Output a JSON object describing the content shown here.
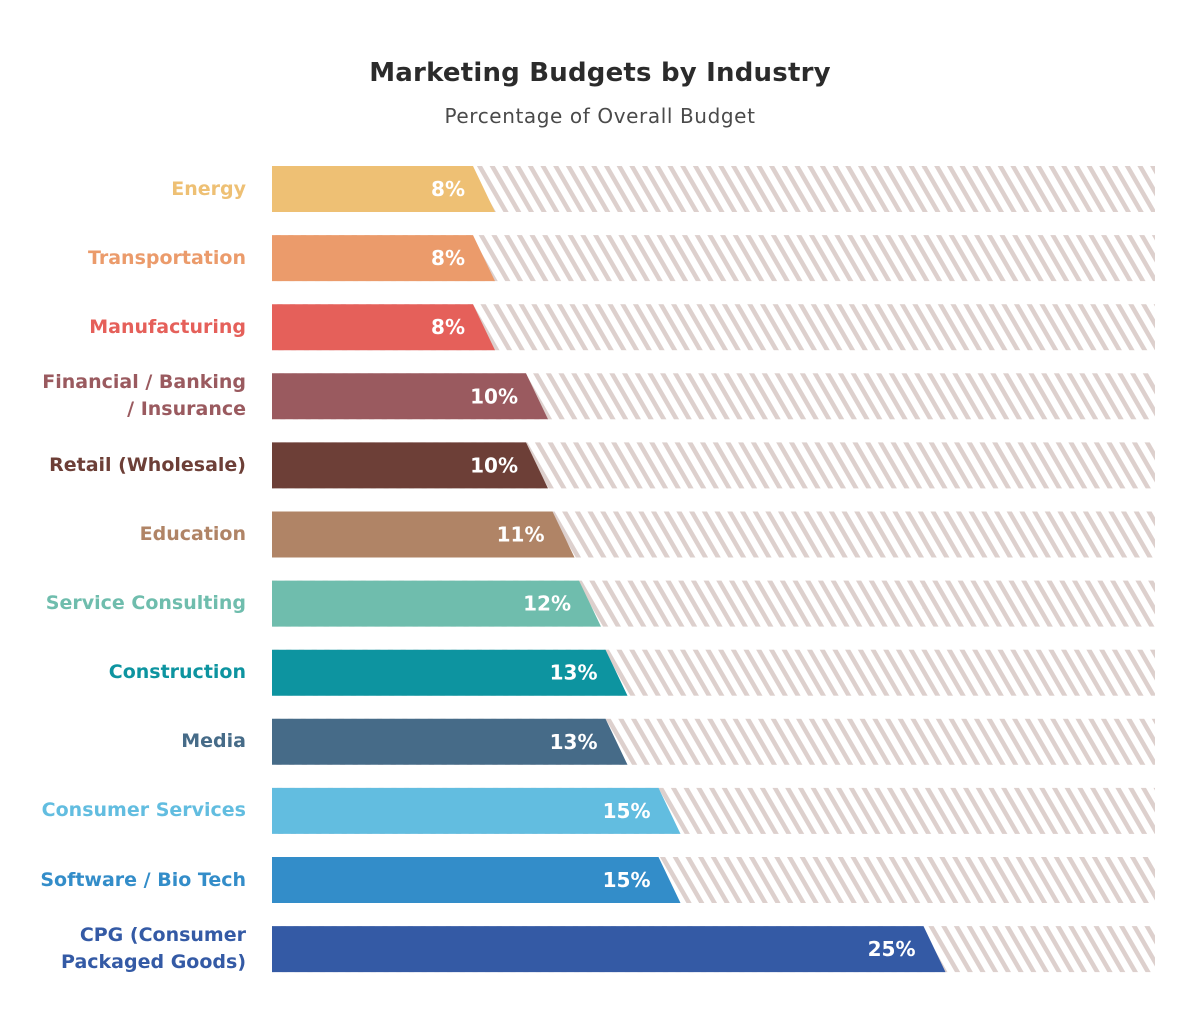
{
  "chart_data": {
    "type": "bar",
    "orientation": "horizontal",
    "title": "Marketing Budgets by Industry",
    "subtitle": "Percentage of Overall Budget",
    "xlim": [
      0,
      30
    ],
    "categories": [
      "Energy",
      "Transportation",
      "Manufacturing",
      "Financial / Banking / Insurance",
      "Retail (Wholesale)",
      "Education",
      "Service Consulting",
      "Construction",
      "Media",
      "Consumer Services",
      "Software / Bio Tech",
      "CPG (Consumer Packaged Goods)"
    ],
    "category_lines": [
      [
        "Energy"
      ],
      [
        "Transportation"
      ],
      [
        "Manufacturing"
      ],
      [
        "Financial / Banking",
        "/ Insurance"
      ],
      [
        "Retail (Wholesale)"
      ],
      [
        "Education"
      ],
      [
        "Service Consulting"
      ],
      [
        "Construction"
      ],
      [
        "Media"
      ],
      [
        "Consumer Services"
      ],
      [
        "Software / Bio Tech"
      ],
      [
        "CPG (Consumer",
        "Packaged Goods)"
      ]
    ],
    "values": [
      8,
      8,
      8,
      10,
      10,
      11,
      12,
      13,
      13,
      15,
      15,
      25
    ],
    "value_labels": [
      "8%",
      "8%",
      "8%",
      "10%",
      "10%",
      "11%",
      "12%",
      "13%",
      "13%",
      "15%",
      "15%",
      "25%"
    ],
    "colors": [
      "#eec074",
      "#eb9b6b",
      "#e5605a",
      "#9a5a5f",
      "#6d3f37",
      "#b08466",
      "#6fbdad",
      "#0d94a0",
      "#466b88",
      "#62bde0",
      "#338dc9",
      "#345aa5"
    ],
    "background_hatch_color": "#ddd0cd",
    "grid": false,
    "legend": false
  }
}
